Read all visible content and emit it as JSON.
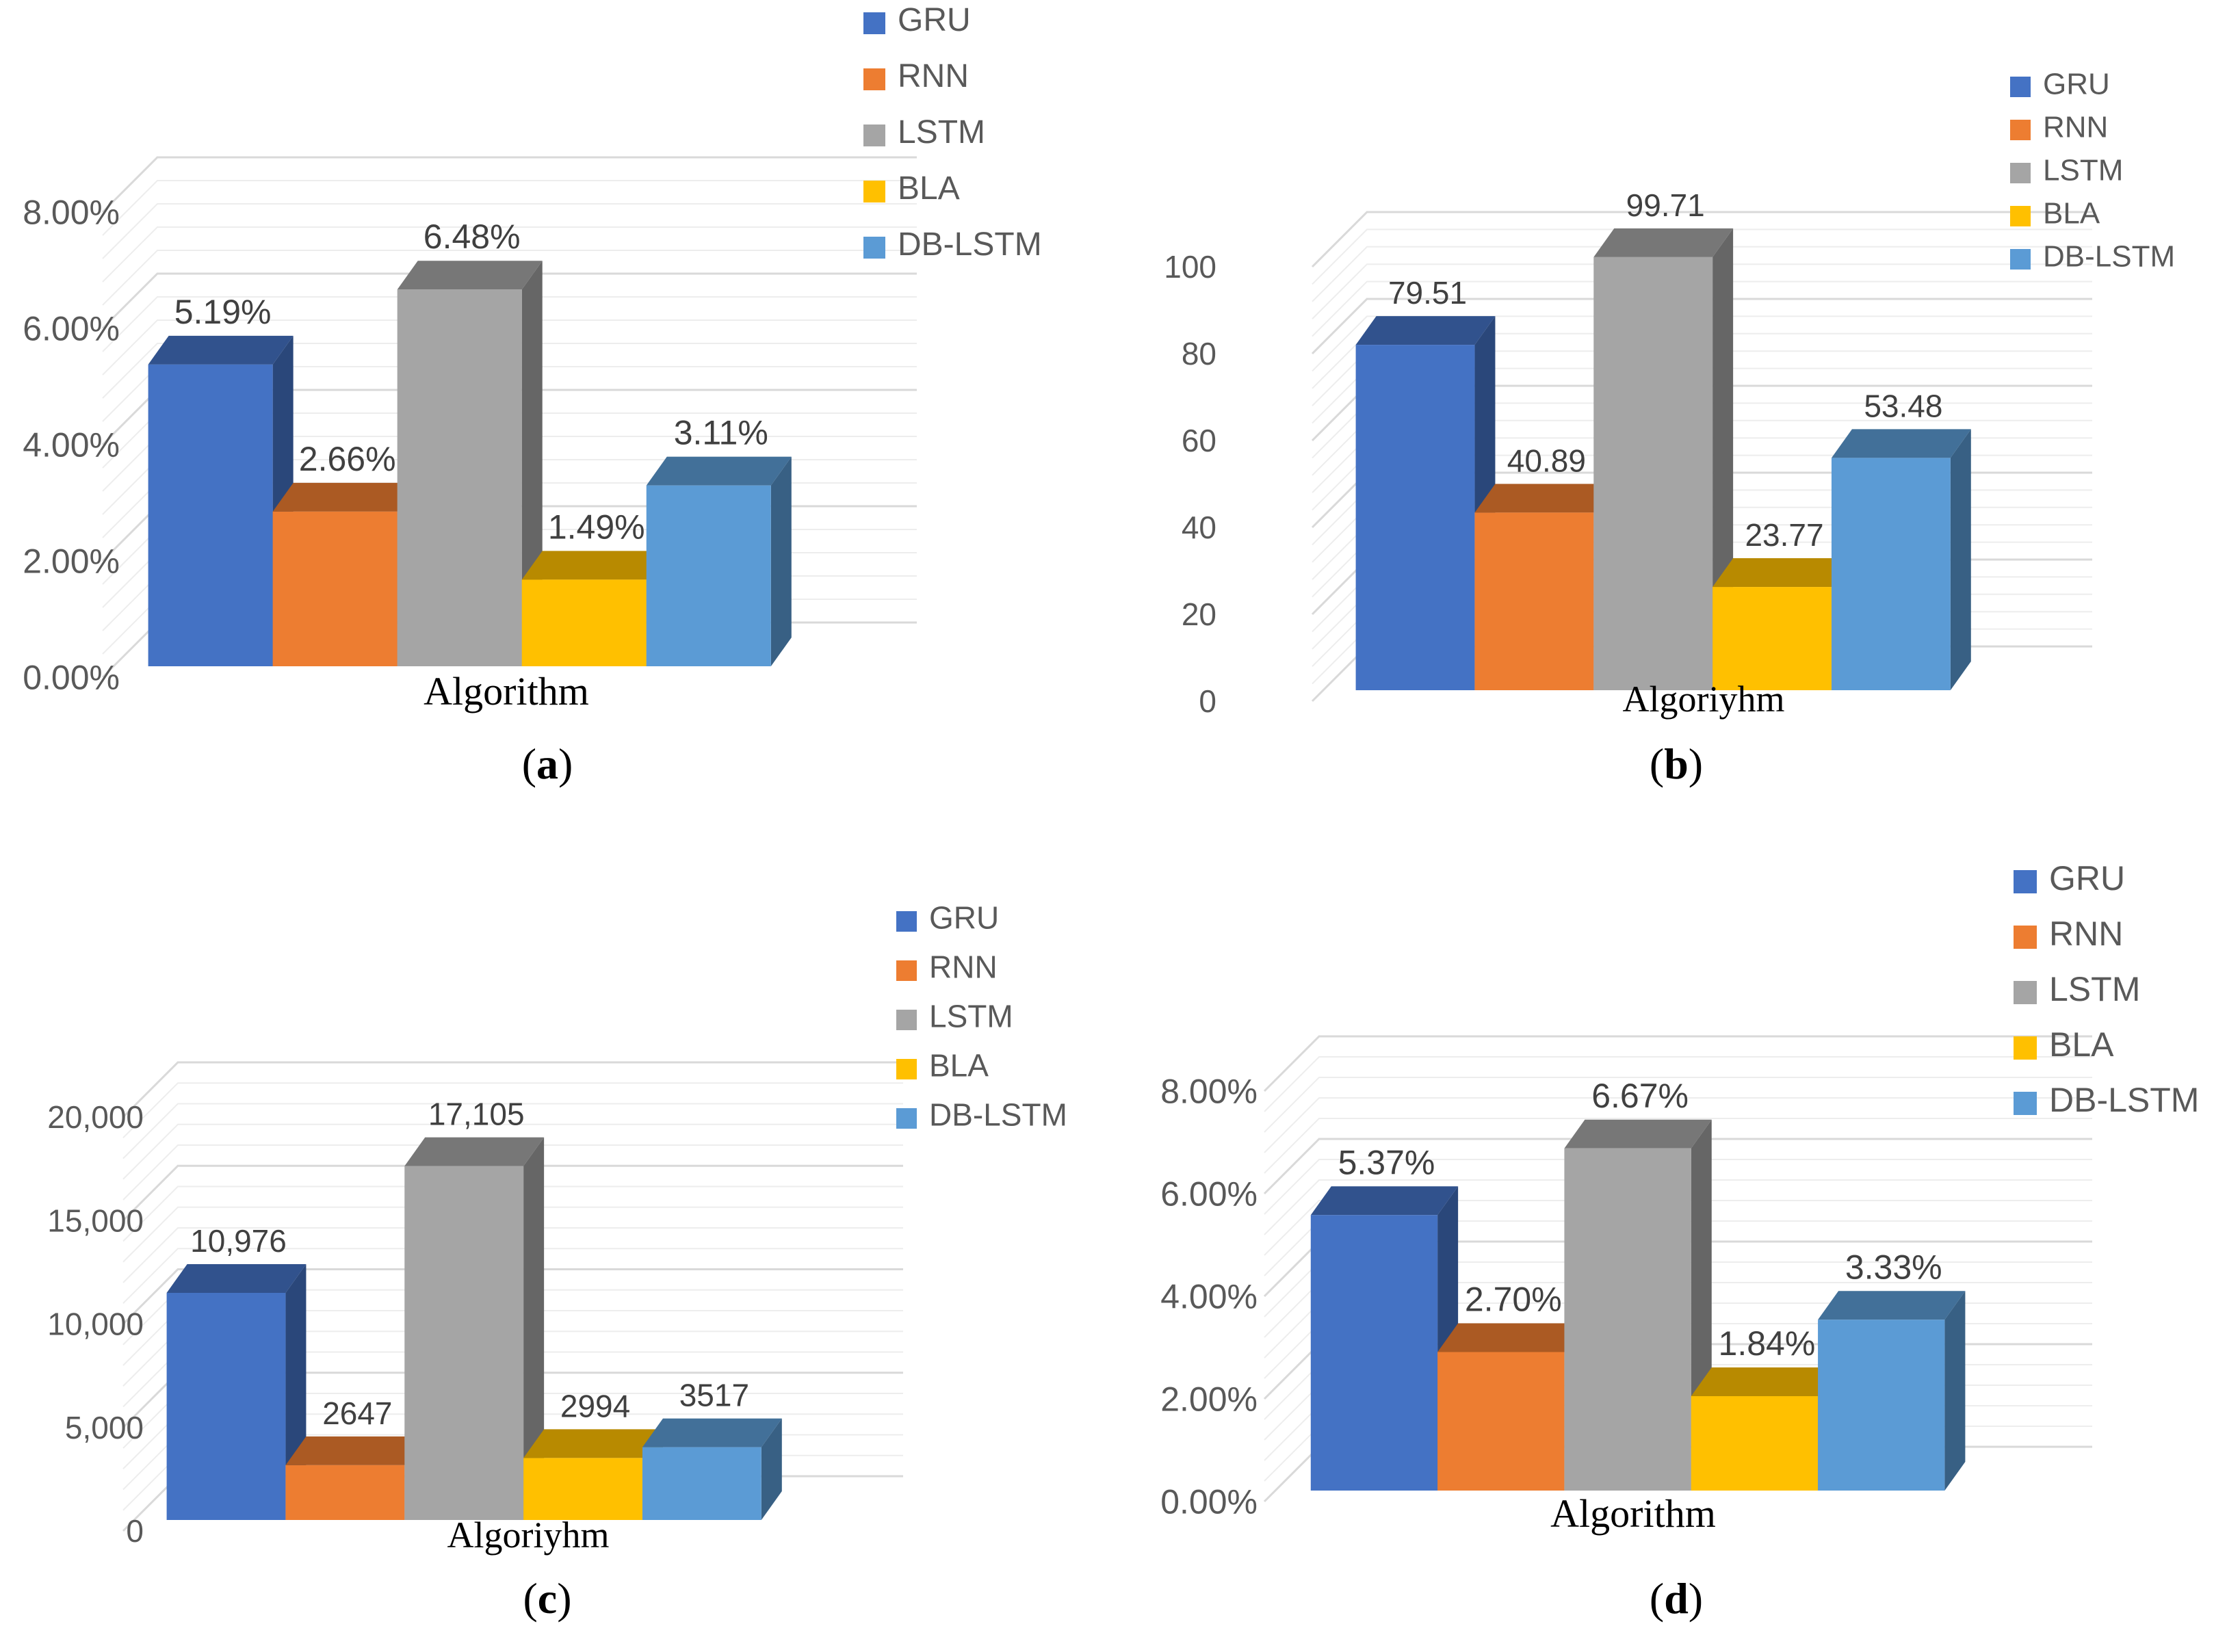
{
  "chart_data": [
    {
      "type": "bar",
      "id": "a",
      "caption": "a",
      "xlabel": "Algorithm",
      "categories": [
        "Algorithm"
      ],
      "series": [
        {
          "name": "GRU",
          "values": [
            5.19
          ],
          "label": "5.19%"
        },
        {
          "name": "RNN",
          "values": [
            2.66
          ],
          "label": "2.66%"
        },
        {
          "name": "LSTM",
          "values": [
            6.48
          ],
          "label": "6.48%"
        },
        {
          "name": "BLA",
          "values": [
            1.49
          ],
          "label": "1.49%"
        },
        {
          "name": "DB-LSTM",
          "values": [
            3.11
          ],
          "label": "3.11%"
        }
      ],
      "ylim": [
        0,
        8
      ],
      "yticks": [
        "0.00%",
        "2.00%",
        "4.00%",
        "6.00%",
        "8.00%"
      ],
      "legend": "top-right"
    },
    {
      "type": "bar",
      "id": "b",
      "caption": "b",
      "xlabel": "Algoriyhm",
      "categories": [
        "Algoriyhm"
      ],
      "series": [
        {
          "name": "GRU",
          "values": [
            79.51
          ],
          "label": "79.51"
        },
        {
          "name": "RNN",
          "values": [
            40.89
          ],
          "label": "40.89"
        },
        {
          "name": "LSTM",
          "values": [
            99.71
          ],
          "label": "99.71"
        },
        {
          "name": "BLA",
          "values": [
            23.77
          ],
          "label": "23.77"
        },
        {
          "name": "DB-LSTM",
          "values": [
            53.48
          ],
          "label": "53.48"
        }
      ],
      "ylim": [
        0,
        100
      ],
      "yticks": [
        "0",
        "20",
        "40",
        "60",
        "80",
        "100"
      ],
      "legend": "top-right"
    },
    {
      "type": "bar",
      "id": "c",
      "caption": "c",
      "xlabel": "Algoriyhm",
      "categories": [
        "Algoriyhm"
      ],
      "series": [
        {
          "name": "GRU",
          "values": [
            10976
          ],
          "label": "10,976"
        },
        {
          "name": "RNN",
          "values": [
            2647
          ],
          "label": "2647"
        },
        {
          "name": "LSTM",
          "values": [
            17105
          ],
          "label": "17,105"
        },
        {
          "name": "BLA",
          "values": [
            2994
          ],
          "label": "2994"
        },
        {
          "name": "DB-LSTM",
          "values": [
            3517
          ],
          "label": "3517"
        }
      ],
      "ylim": [
        0,
        20000
      ],
      "yticks": [
        "0",
        "5,000",
        "10,000",
        "15,000",
        "20,000"
      ],
      "legend": "top-right"
    },
    {
      "type": "bar",
      "id": "d",
      "caption": "d",
      "xlabel": "Algorithm",
      "categories": [
        "Algorithm"
      ],
      "series": [
        {
          "name": "GRU",
          "values": [
            5.37
          ],
          "label": "5.37%"
        },
        {
          "name": "RNN",
          "values": [
            2.7
          ],
          "label": "2.70%"
        },
        {
          "name": "LSTM",
          "values": [
            6.67
          ],
          "label": "6.67%"
        },
        {
          "name": "BLA",
          "values": [
            1.84
          ],
          "label": "1.84%"
        },
        {
          "name": "DB-LSTM",
          "values": [
            3.33
          ],
          "label": "3.33%"
        }
      ],
      "ylim": [
        0,
        8
      ],
      "yticks": [
        "0.00%",
        "2.00%",
        "4.00%",
        "6.00%",
        "8.00%"
      ],
      "legend": "top-right"
    }
  ],
  "colors": {
    "GRU": "#4472C4",
    "RNN": "#ED7D31",
    "LSTM": "#A5A5A5",
    "BLA": "#FFC000",
    "DB-LSTM": "#5B9BD5",
    "grid": "#D9D9D9"
  }
}
